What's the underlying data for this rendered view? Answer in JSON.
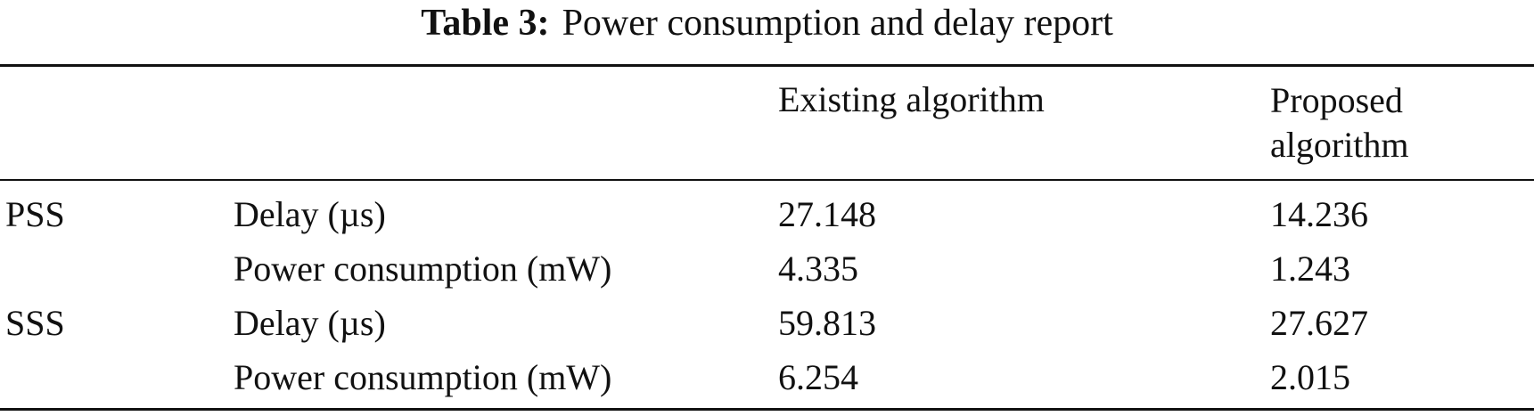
{
  "caption": {
    "label": "Table 3:",
    "text": "Power consumption and delay report"
  },
  "table": {
    "headers": {
      "group": "",
      "metric": "",
      "existing": "Existing algorithm",
      "proposed_line1": "Proposed",
      "proposed_line2": "algorithm"
    },
    "rows": [
      {
        "group": "PSS",
        "metric": "Delay (µs)",
        "existing": "27.148",
        "proposed": "14.236"
      },
      {
        "group": "",
        "metric": "Power consumption (mW)",
        "existing": "4.335",
        "proposed": "1.243"
      },
      {
        "group": "SSS",
        "metric": "Delay (µs)",
        "existing": "59.813",
        "proposed": "27.627"
      },
      {
        "group": "",
        "metric": "Power consumption (mW)",
        "existing": "6.254",
        "proposed": "2.015"
      }
    ]
  }
}
